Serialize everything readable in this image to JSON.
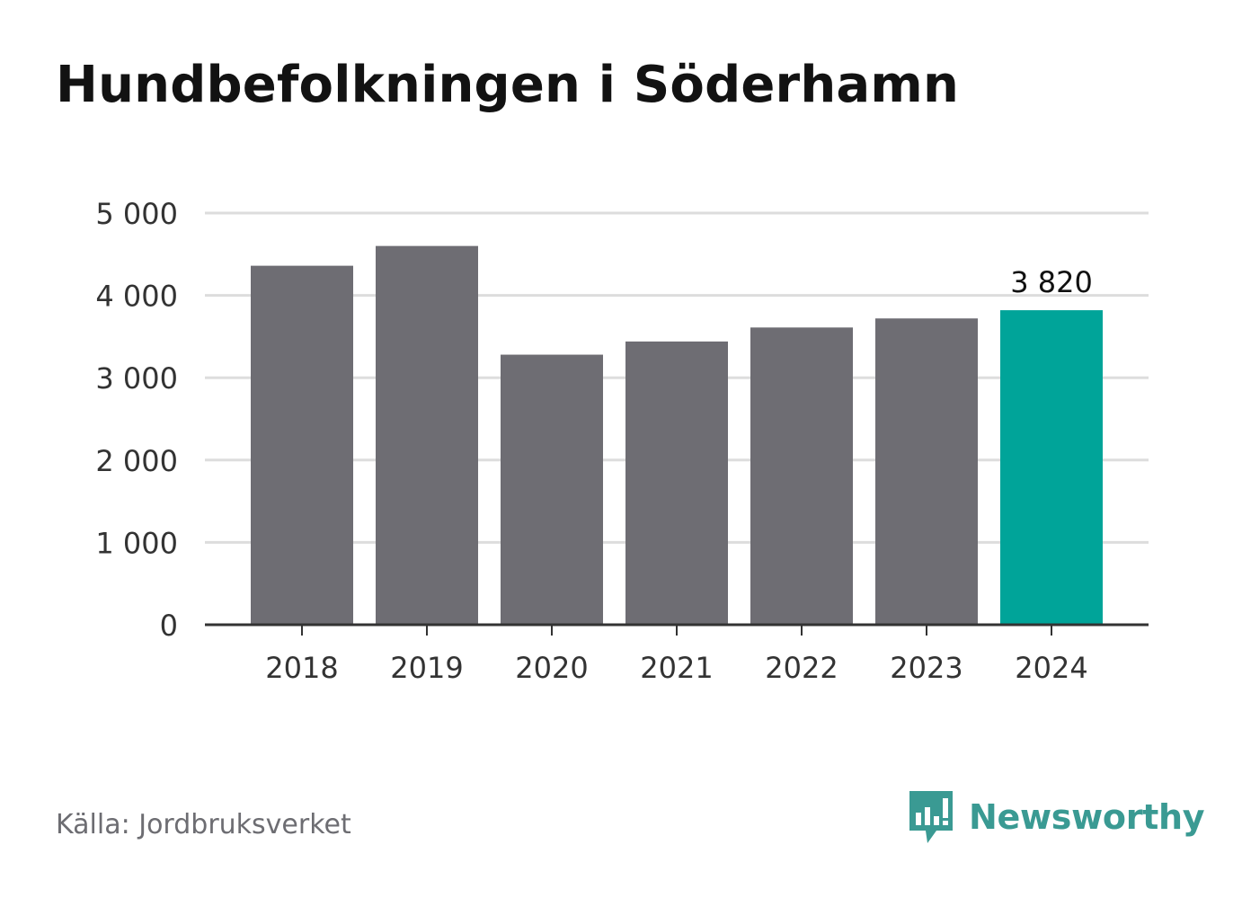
{
  "title": "Hundbefolkningen i Söderhamn",
  "source": "Källa: Jordbruksverket",
  "brand": {
    "name": "Newsworthy",
    "icon": "newsworthy-logo-icon",
    "color": "#3a9a93"
  },
  "colors": {
    "bar": "#6e6d73",
    "highlight": "#00a499",
    "grid": "#dddddd",
    "axis": "#333333",
    "tick_text": "#333333"
  },
  "chart_data": {
    "type": "bar",
    "title": "Hundbefolkningen i Söderhamn",
    "xlabel": "",
    "ylabel": "",
    "categories": [
      "2018",
      "2019",
      "2020",
      "2021",
      "2022",
      "2023",
      "2024"
    ],
    "values": [
      4360,
      4600,
      3280,
      3440,
      3610,
      3720,
      3820
    ],
    "highlight_category": "2024",
    "annotation": {
      "category": "2024",
      "text": "3 820"
    },
    "ylim": [
      0,
      5000
    ],
    "yticks": [
      0,
      1000,
      2000,
      3000,
      4000,
      5000
    ],
    "ytick_labels": [
      "0",
      "1 000",
      "2 000",
      "3 000",
      "4 000",
      "5 000"
    ],
    "grid": true,
    "legend": "none"
  }
}
